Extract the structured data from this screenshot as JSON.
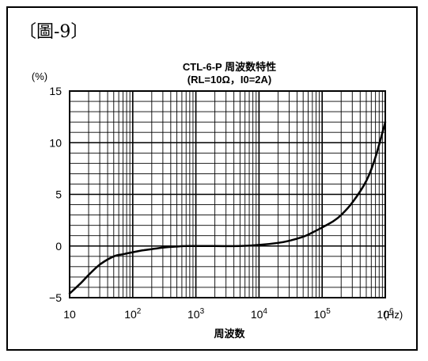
{
  "figure_label": "〔圖-9〕",
  "chart_data": {
    "type": "line",
    "title": "CTL-6-P 周波数特性",
    "subtitle": "(RL=10Ω，I0=2A)",
    "xlabel": "周波数",
    "ylabel": "(%)",
    "x_unit": "(Hz)",
    "x_scale": "log",
    "xlim": [
      10,
      1000000
    ],
    "ylim": [
      -5,
      15
    ],
    "x_ticks": [
      {
        "value": 10,
        "base": "10",
        "exp": ""
      },
      {
        "value": 100,
        "base": "10",
        "exp": "2"
      },
      {
        "value": 1000,
        "base": "10",
        "exp": "3"
      },
      {
        "value": 10000,
        "base": "10",
        "exp": "4"
      },
      {
        "value": 100000,
        "base": "10",
        "exp": "5"
      },
      {
        "value": 1000000,
        "base": "10",
        "exp": "6"
      }
    ],
    "y_ticks": [
      {
        "value": -5,
        "label": "−5"
      },
      {
        "value": 0,
        "label": "0"
      },
      {
        "value": 5,
        "label": "5"
      },
      {
        "value": 10,
        "label": "10"
      },
      {
        "value": 15,
        "label": "15"
      }
    ],
    "grid": true,
    "y_minor_step": 1,
    "series": [
      {
        "x": [
          10,
          15,
          20,
          30,
          50,
          70,
          100,
          150,
          200,
          300,
          500,
          700,
          1000,
          2000,
          5000,
          10000,
          20000,
          30000,
          50000,
          70000,
          100000,
          150000,
          200000,
          300000,
          500000,
          700000,
          1000000
        ],
        "y": [
          -4.6,
          -3.6,
          -2.8,
          -1.8,
          -1.0,
          -0.8,
          -0.6,
          -0.4,
          -0.3,
          -0.15,
          -0.05,
          0,
          0,
          0,
          0,
          0.1,
          0.3,
          0.5,
          0.9,
          1.3,
          1.8,
          2.4,
          3.0,
          4.2,
          6.3,
          8.6,
          12.0
        ]
      }
    ]
  }
}
